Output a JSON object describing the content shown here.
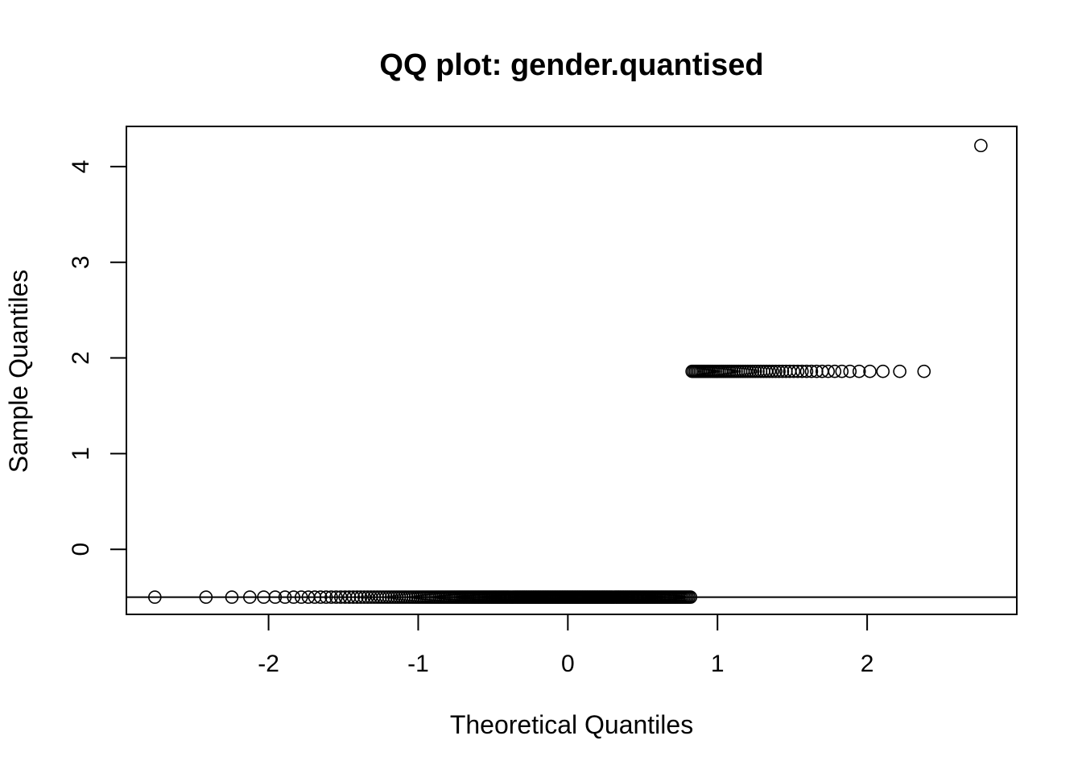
{
  "chart_data": {
    "type": "scatter",
    "title": "QQ plot: gender.quantised",
    "xlabel": "Theoretical Quantiles",
    "ylabel": "Sample Quantiles",
    "xlim": [
      -2.95,
      3.0
    ],
    "ylim": [
      -0.68,
      4.42
    ],
    "xticks": [
      -2,
      -1,
      0,
      1,
      2
    ],
    "yticks": [
      0,
      1,
      2,
      3,
      4
    ],
    "grid": false,
    "legend": "none",
    "reference_line": {
      "y": -0.5
    },
    "groups": [
      {
        "y": -0.5,
        "x_min": -2.76,
        "x_max": 0.82,
        "n": 240
      },
      {
        "y": 1.86,
        "x_min": 0.83,
        "x_max": 2.38,
        "n": 60
      }
    ],
    "outliers": [
      {
        "x": 2.76,
        "y": 4.22
      }
    ]
  }
}
